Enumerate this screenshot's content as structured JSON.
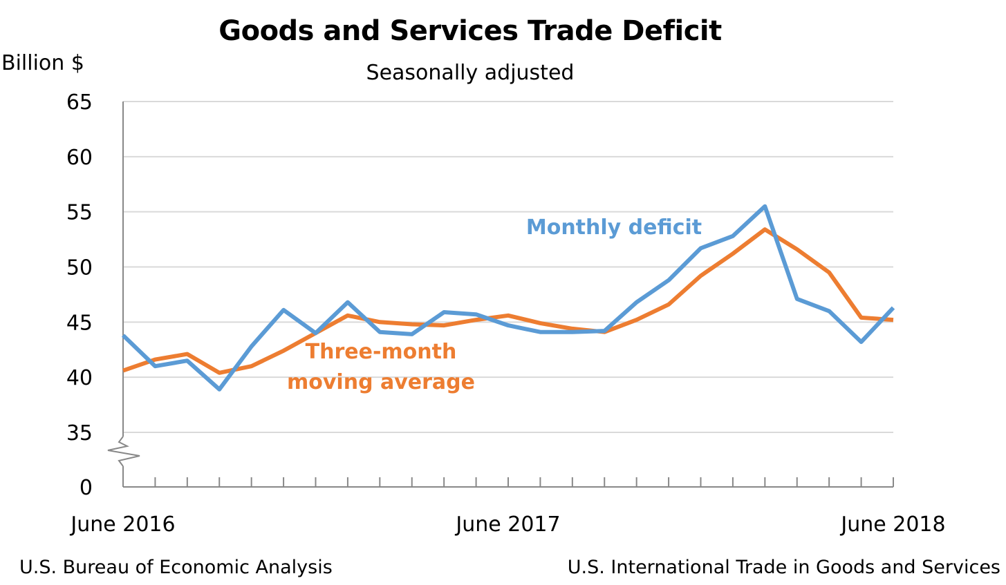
{
  "chart_data": {
    "type": "line",
    "title": "Goods and Services Trade Deficit",
    "subtitle": "Seasonally adjusted",
    "ylabel": "Billion $",
    "ylim": [
      35,
      65
    ],
    "y_break": true,
    "y_ticks": [
      "0",
      "35",
      "40",
      "45",
      "50",
      "55",
      "60",
      "65"
    ],
    "x_tick_labels": [
      {
        "label": "June 2016",
        "index": 0
      },
      {
        "label": "June 2017",
        "index": 12
      },
      {
        "label": "June 2018",
        "index": 24
      }
    ],
    "grid": true,
    "series": [
      {
        "name": "Monthly deficit",
        "color": "#5B9BD5",
        "values": [
          43.8,
          41.0,
          41.5,
          38.9,
          42.8,
          46.1,
          44.0,
          46.8,
          44.1,
          43.9,
          45.9,
          45.7,
          44.7,
          44.1,
          44.1,
          44.2,
          46.8,
          48.8,
          51.7,
          52.8,
          55.5,
          47.1,
          46.0,
          43.2,
          46.3
        ]
      },
      {
        "name": "Three-month moving average",
        "color": "#ED7D31",
        "values": [
          40.6,
          41.6,
          42.1,
          40.4,
          41.0,
          42.4,
          44.0,
          45.6,
          45.0,
          44.8,
          44.7,
          45.2,
          45.6,
          44.9,
          44.4,
          44.1,
          45.2,
          46.6,
          49.2,
          51.2,
          53.4,
          51.6,
          49.5,
          45.4,
          45.2
        ]
      }
    ],
    "labels": {
      "monthly": "Monthly deficit",
      "average_line1": "Three-month",
      "average_line2": "moving average"
    }
  },
  "footer": {
    "source_left": "U.S. Bureau of Economic Analysis",
    "source_right": "U.S. International Trade in Goods and Services"
  }
}
